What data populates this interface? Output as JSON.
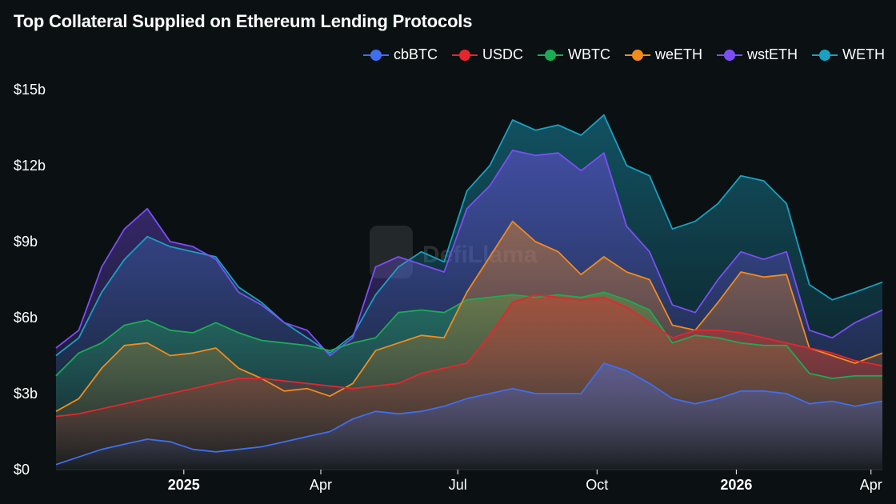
{
  "chart_data": {
    "type": "area",
    "title": "Top Collateral Supplied on Ethereum Lending Protocols",
    "xlabel": "",
    "ylabel": "",
    "ylim": [
      0,
      15
    ],
    "y_ticks": [
      {
        "value": 0,
        "label": "$0"
      },
      {
        "value": 3,
        "label": "$3b"
      },
      {
        "value": 6,
        "label": "$6b"
      },
      {
        "value": 9,
        "label": "$9b"
      },
      {
        "value": 12,
        "label": "$12b"
      },
      {
        "value": 15,
        "label": "$15b"
      }
    ],
    "x_range": [
      0,
      18.1
    ],
    "x_ticks": [
      {
        "value": 2.8,
        "label": "2025",
        "bold": true
      },
      {
        "value": 5.8,
        "label": "Apr",
        "bold": false
      },
      {
        "value": 8.8,
        "label": "Jul",
        "bold": false
      },
      {
        "value": 11.85,
        "label": "Oct",
        "bold": false
      },
      {
        "value": 14.9,
        "label": "2026",
        "bold": true
      },
      {
        "value": 17.85,
        "label": "Apr",
        "bold": false
      }
    ],
    "watermark": "DefiLlama",
    "x": [
      0,
      0.5,
      1,
      1.5,
      2,
      2.5,
      3,
      3.5,
      4,
      4.5,
      5,
      5.5,
      6,
      6.5,
      7,
      7.5,
      8,
      8.5,
      9,
      9.5,
      10,
      10.5,
      11,
      11.5,
      12,
      12.5,
      13,
      13.5,
      14,
      14.5,
      15,
      15.5,
      16,
      16.5,
      17,
      17.5,
      18.1
    ],
    "series": [
      {
        "name": "WETH",
        "color": "#1aa0c0",
        "values": [
          4.5,
          5.2,
          7.0,
          8.3,
          9.2,
          8.8,
          8.6,
          8.4,
          7.2,
          6.6,
          5.8,
          5.2,
          4.6,
          5.3,
          6.9,
          8.0,
          8.6,
          8.2,
          11.0,
          12.0,
          13.8,
          13.4,
          13.6,
          13.2,
          14.0,
          12.0,
          11.6,
          9.5,
          9.8,
          10.5,
          11.6,
          11.4,
          10.5,
          7.3,
          6.7,
          7.0,
          7.4
        ]
      },
      {
        "name": "wstETH",
        "color": "#7b4ef5",
        "values": [
          4.8,
          5.5,
          8.0,
          9.5,
          10.3,
          9.0,
          8.8,
          8.3,
          7.0,
          6.5,
          5.8,
          5.5,
          4.5,
          5.2,
          8.0,
          8.4,
          8.1,
          7.8,
          10.3,
          11.2,
          12.6,
          12.4,
          12.5,
          11.8,
          12.5,
          9.6,
          8.6,
          6.5,
          6.2,
          7.5,
          8.6,
          8.3,
          8.6,
          5.5,
          5.2,
          5.8,
          6.3
        ]
      },
      {
        "name": "WBTC",
        "color": "#1cab55",
        "values": [
          3.7,
          4.6,
          5.0,
          5.7,
          5.9,
          5.5,
          5.4,
          5.8,
          5.4,
          5.1,
          5.0,
          4.9,
          4.7,
          5.0,
          5.2,
          6.2,
          6.3,
          6.2,
          6.7,
          6.8,
          6.9,
          6.8,
          6.9,
          6.8,
          7.0,
          6.7,
          6.3,
          5.0,
          5.3,
          5.2,
          5.0,
          4.9,
          4.9,
          3.8,
          3.6,
          3.7,
          3.7
        ]
      },
      {
        "name": "weETH",
        "color": "#f38a1c",
        "values": [
          2.3,
          2.8,
          4.0,
          4.9,
          5.0,
          4.5,
          4.6,
          4.8,
          4.0,
          3.6,
          3.1,
          3.2,
          2.9,
          3.4,
          4.7,
          5.0,
          5.3,
          5.2,
          7.0,
          8.4,
          9.8,
          9.0,
          8.6,
          7.7,
          8.4,
          7.8,
          7.5,
          5.7,
          5.5,
          6.6,
          7.8,
          7.6,
          7.7,
          4.8,
          4.5,
          4.2,
          4.6
        ]
      },
      {
        "name": "USDC",
        "color": "#e5262e",
        "values": [
          2.1,
          2.2,
          2.4,
          2.6,
          2.8,
          3.0,
          3.2,
          3.4,
          3.6,
          3.6,
          3.5,
          3.4,
          3.3,
          3.2,
          3.3,
          3.4,
          3.8,
          4.0,
          4.2,
          5.3,
          6.6,
          6.9,
          6.8,
          6.7,
          6.8,
          6.4,
          5.8,
          5.2,
          5.5,
          5.5,
          5.4,
          5.2,
          5.0,
          4.8,
          4.6,
          4.3,
          4.1
        ]
      },
      {
        "name": "cbBTC",
        "color": "#3f6ef0",
        "values": [
          0.2,
          0.5,
          0.8,
          1.0,
          1.2,
          1.1,
          0.8,
          0.7,
          0.8,
          0.9,
          1.1,
          1.3,
          1.5,
          2.0,
          2.3,
          2.2,
          2.3,
          2.5,
          2.8,
          3.0,
          3.2,
          3.0,
          3.0,
          3.0,
          4.2,
          3.9,
          3.4,
          2.8,
          2.6,
          2.8,
          3.1,
          3.1,
          3.0,
          2.6,
          2.7,
          2.5,
          2.7
        ]
      }
    ]
  }
}
